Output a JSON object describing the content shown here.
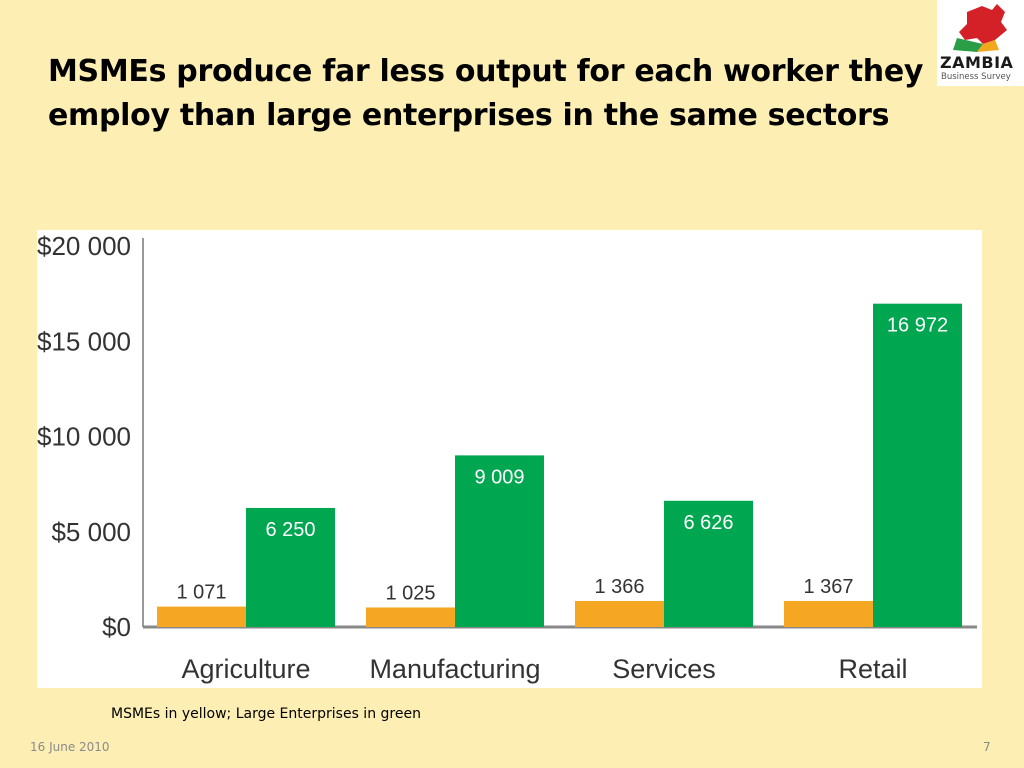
{
  "slide": {
    "title": "MSMEs produce far less output for each worker they employ than large enterprises in the same sectors",
    "caption": "MSMEs in yellow; Large Enterprises in green",
    "date": "16 June 2010",
    "page_number": "7"
  },
  "logo": {
    "name": "ZAMBIA",
    "subtitle": "Business Survey",
    "colors": {
      "map_red": "#d42027",
      "map_green": "#2a9d47",
      "map_orange": "#f2a81d"
    }
  },
  "chart_data": {
    "type": "bar",
    "categories": [
      "Agriculture",
      "Manufacturing",
      "Services",
      "Retail"
    ],
    "series": [
      {
        "name": "MSMEs",
        "values": [
          1071,
          1025,
          1366,
          1367
        ],
        "labels": [
          "1 071",
          "1 025",
          "1 366",
          "1 367"
        ],
        "color": "#f5a623"
      },
      {
        "name": "Large Enterprises",
        "values": [
          6250,
          9009,
          6626,
          16972
        ],
        "labels": [
          "6 250",
          "9 009",
          "6 626",
          "16 972"
        ],
        "color": "#00a650"
      }
    ],
    "yticks": [
      0,
      5000,
      10000,
      15000,
      20000
    ],
    "ytick_labels": [
      "$0",
      "$5 000",
      "$10 000",
      "$15 000",
      "$20 000"
    ],
    "ylim": [
      0,
      20000
    ],
    "grid": false,
    "legend": "none"
  }
}
